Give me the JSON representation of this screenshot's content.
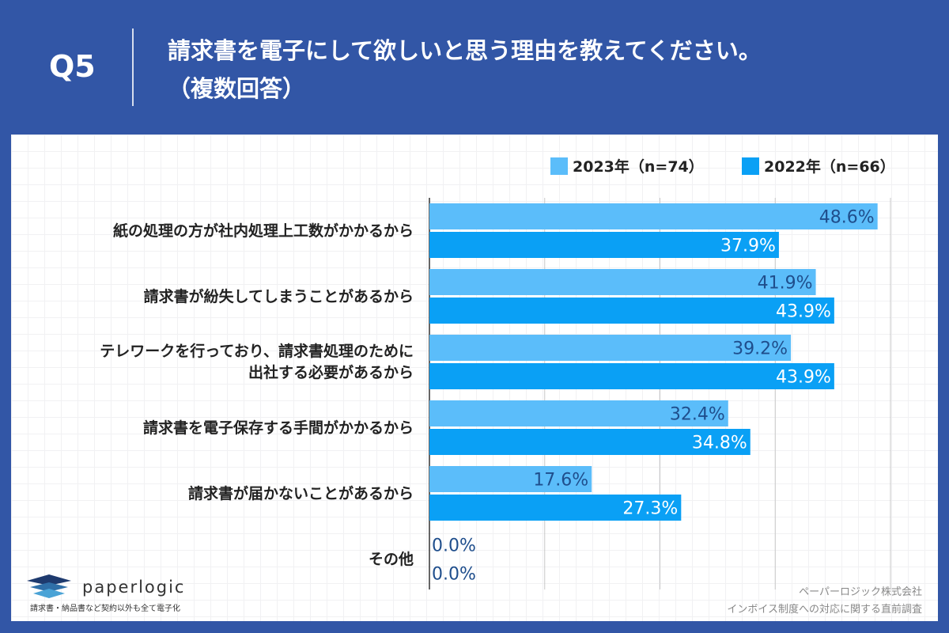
{
  "header": {
    "q": "Q5",
    "title_line1": "請求書を電子にして欲しいと思う理由を教えてください。",
    "title_line2": "（複数回答）"
  },
  "chart_data": {
    "type": "bar",
    "orientation": "horizontal",
    "categories": [
      "紙の処理の方が社内処理上工数がかかるから",
      "請求書が紛失してしまうことがあるから",
      "テレワークを行っており、請求書処理のために出社する必要があるから",
      "請求書を電子保存する手間がかかるから",
      "請求書が届かないことがあるから",
      "その他"
    ],
    "category_lines": [
      [
        "紙の処理の方が社内処理上工数がかかるから"
      ],
      [
        "請求書が紛失してしまうことがあるから"
      ],
      [
        "テレワークを行っており、請求書処理のために",
        "出社する必要があるから"
      ],
      [
        "請求書を電子保存する手間がかかるから"
      ],
      [
        "請求書が届かないことがあるから"
      ],
      [
        "その他"
      ]
    ],
    "series": [
      {
        "name": "2023年（n=74）",
        "color": "#5bbdfa",
        "label_color": "#1f4e8c",
        "values": [
          48.6,
          41.9,
          39.2,
          32.4,
          17.6,
          0.0
        ]
      },
      {
        "name": "2022年（n=66）",
        "color": "#0aa0f5",
        "label_color": "#ffffff",
        "values": [
          37.9,
          43.9,
          43.9,
          34.8,
          27.3,
          0.0
        ]
      }
    ],
    "xlim": [
      0,
      50
    ],
    "grid": true,
    "legend_position": "top-right",
    "value_format": "%"
  },
  "footer": {
    "logo": "paperlogic",
    "logo_tagline": "請求書・納品書など契約以外も全て電子化",
    "credit_company": "ペーパーロジック株式会社",
    "credit_survey": "インボイス制度への対応に関する直前調査"
  }
}
